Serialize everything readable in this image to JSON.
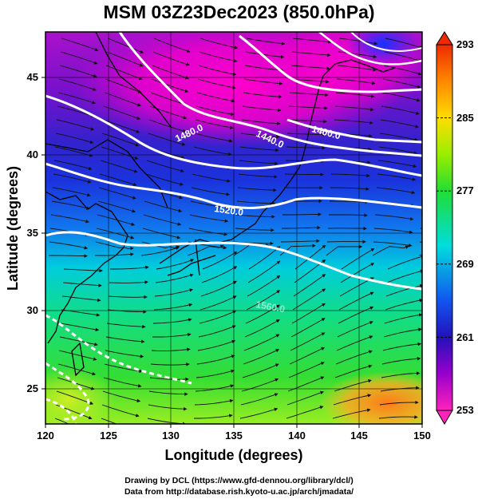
{
  "title": "MSM 03Z23Dec2023 (850.0hPa)",
  "xlabel": "Longitude (degrees)",
  "ylabel": "Latitude  (degrees)",
  "credit_drawing": "Drawing by DCL (https://www.gfd-dennou.org/library/dcl/)",
  "credit_data": "Data from http://database.rish.kyoto-u.ac.jp/arch/jmadata/",
  "map": {
    "lon_range": [
      120,
      150
    ],
    "lat_range": [
      22.4,
      47.6
    ],
    "lon_ticks": [
      "120",
      "125",
      "130",
      "135",
      "140",
      "145",
      "150"
    ],
    "lat_ticks": [
      "25",
      "30",
      "35",
      "40",
      "45"
    ],
    "contour_labels": [
      "1480.0",
      "1440.0",
      "1400.0",
      "1520.0",
      "1560.0"
    ],
    "colors": {
      "cold": "#ff00cc",
      "cool": "#1a3cff",
      "mild": "#00e0e0",
      "warm": "#22ee22",
      "hot": "#ff7a1a"
    }
  },
  "colorbar": {
    "ticks": [
      "293",
      "285",
      "277",
      "269",
      "261",
      "253"
    ],
    "min": 253,
    "max": 293
  }
}
